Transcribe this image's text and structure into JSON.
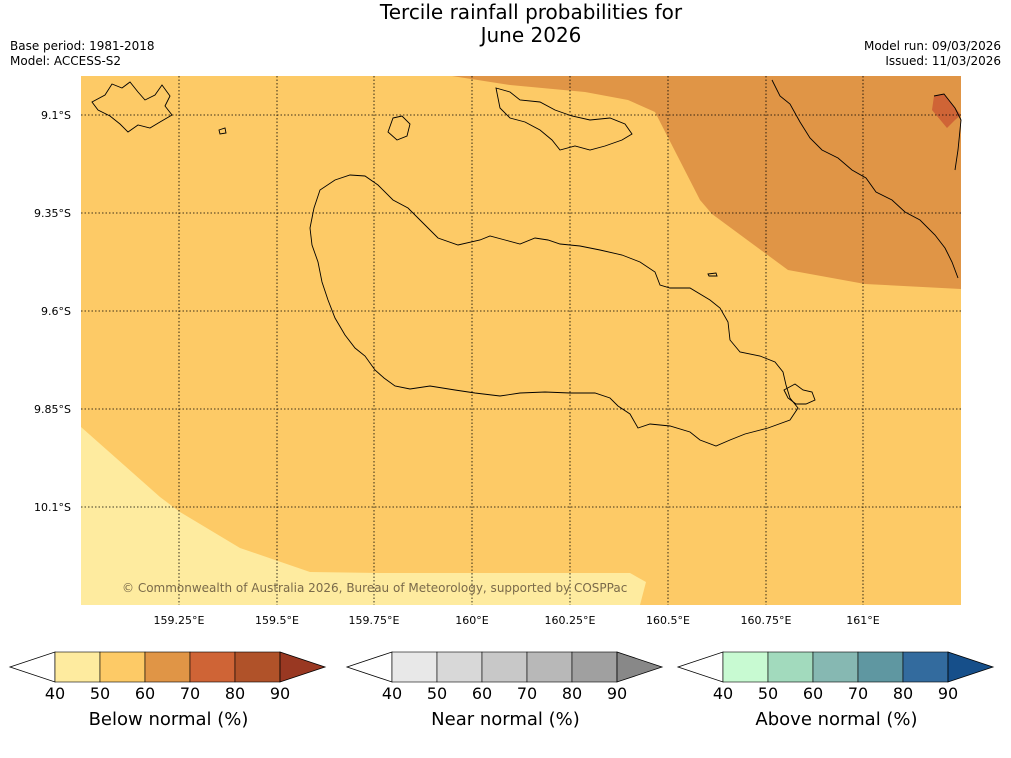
{
  "title_line1": "Tercile rainfall probabilities for",
  "title_line2": "June 2026",
  "base_period": "Base period: 1981-2018",
  "model": "Model: ACCESS-S2",
  "model_run": "Model run: 09/03/2026",
  "issued": "Issued: 11/03/2026",
  "copyright": "© Commonwealth of Australia 2026, Bureau of Meteorology, supported by COSPPac",
  "axes": {
    "lat_ticks": [
      "9.1°S",
      "9.35°S",
      "9.6°S",
      "9.85°S",
      "10.1°S"
    ],
    "lon_ticks": [
      "159.25°E",
      "159.5°E",
      "159.75°E",
      "160°E",
      "160.25°E",
      "160.5°E",
      "160.75°E",
      "161°E"
    ],
    "lat_range": [
      -10.35,
      -9.0
    ],
    "lon_range": [
      159.0,
      161.2
    ]
  },
  "colors": {
    "below_40_50": "#feeb9f",
    "below_50_60": "#fdca66",
    "below_60_70": "#e09546",
    "below_70_80": "#cf6436"
  },
  "colorbars": [
    {
      "label": "Below normal (%)",
      "ticks": [
        "40",
        "50",
        "60",
        "70",
        "80",
        "90"
      ],
      "low": "#ffffff",
      "colors": [
        "#feeb9f",
        "#fdca66",
        "#e09546",
        "#cf6436",
        "#b05229"
      ],
      "high": "#993822"
    },
    {
      "label": "Near normal (%)",
      "ticks": [
        "40",
        "50",
        "60",
        "70",
        "80",
        "90"
      ],
      "low": "#ffffff",
      "colors": [
        "#e8e8e8",
        "#d8d8d8",
        "#c8c8c8",
        "#b8b8b8",
        "#a0a0a0"
      ],
      "high": "#888888"
    },
    {
      "label": "Above normal (%)",
      "ticks": [
        "40",
        "50",
        "60",
        "70",
        "80",
        "90"
      ],
      "low": "#ffffff",
      "colors": [
        "#c8fad2",
        "#a2dabd",
        "#86b8b2",
        "#5f97a1",
        "#336b9e"
      ],
      "high": "#164f8a"
    }
  ]
}
